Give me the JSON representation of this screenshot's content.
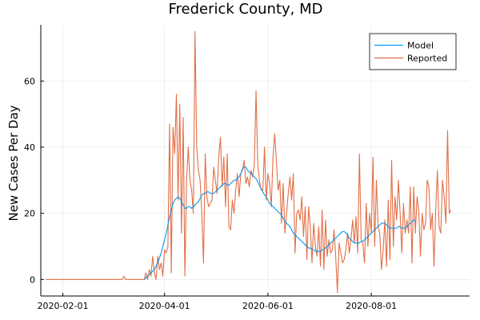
{
  "chart_data": {
    "type": "line",
    "title": "Frederick County, MD",
    "xlabel": "",
    "ylabel": "New Cases Per Day",
    "x_start_date": "2020-01-22",
    "xlim": [
      "2020-01-19",
      "2020-09-28"
    ],
    "ylim": [
      -5,
      77
    ],
    "xticks": [
      "2020-02-01",
      "2020-04-01",
      "2020-06-01",
      "2020-08-01"
    ],
    "yticks": [
      0,
      20,
      40,
      60
    ],
    "grid": true,
    "legend_position": "top-right",
    "series": [
      {
        "name": "Model",
        "color": "#009AFA",
        "start": "2020-03-20",
        "values": [
          0,
          0.5,
          1,
          1.5,
          2,
          2.5,
          3,
          4,
          5,
          6.5,
          8,
          10,
          12,
          14,
          16.5,
          19,
          21,
          23,
          24,
          24.5,
          25,
          24.5,
          23.5,
          22.5,
          21.5,
          21.5,
          22,
          22,
          21.5,
          22,
          22.5,
          23,
          23.5,
          24.5,
          25.5,
          26,
          26,
          26.5,
          26.5,
          26,
          26,
          26,
          26.5,
          27,
          27.5,
          28,
          28.5,
          29,
          29,
          28.5,
          28.5,
          29,
          29.5,
          30,
          30,
          30.5,
          31,
          32,
          33.5,
          34,
          34,
          33,
          32.5,
          32,
          31.5,
          31,
          30.5,
          29.5,
          28.5,
          27.5,
          26.5,
          25.5,
          25,
          24,
          23,
          22.5,
          22,
          21.5,
          21,
          20.5,
          20,
          19.5,
          18.5,
          17.5,
          17,
          16.5,
          16,
          15,
          14,
          13.5,
          13,
          12.5,
          12,
          11.5,
          11,
          10.5,
          10,
          9.5,
          9.5,
          9,
          9,
          8.5,
          8.5,
          8.5,
          8.5,
          9,
          9,
          9.5,
          10,
          10.5,
          11,
          11.5,
          12,
          12.5,
          13,
          13.5,
          14,
          14.5,
          14.5,
          14,
          13.5,
          12.5,
          12,
          11.5,
          11,
          11,
          11,
          11,
          11.5,
          11.5,
          12,
          12.5,
          13,
          13.5,
          14,
          14.5,
          15,
          15.5,
          16,
          16.5,
          17,
          17,
          17,
          16.5,
          16,
          15.5,
          15.5,
          15.5,
          15.5,
          15.5,
          16,
          16,
          15.5,
          15.5,
          15.5,
          16,
          16.5,
          17,
          17.5,
          18,
          17.5
        ]
      },
      {
        "name": "Reported",
        "color": "#E26F46",
        "start": "2020-01-22",
        "values": [
          0,
          0,
          0,
          0,
          0,
          0,
          0,
          0,
          0,
          0,
          0,
          0,
          0,
          0,
          0,
          0,
          0,
          0,
          0,
          0,
          0,
          0,
          0,
          0,
          0,
          0,
          0,
          0,
          0,
          0,
          0,
          0,
          0,
          0,
          0,
          0,
          0,
          0,
          0,
          0,
          0,
          0,
          0,
          0,
          0,
          0,
          1,
          0,
          0,
          0,
          0,
          0,
          0,
          0,
          0,
          0,
          0,
          0,
          0,
          2,
          0,
          3,
          1,
          7,
          2,
          0,
          7,
          3,
          5,
          1,
          9,
          8,
          10,
          47,
          2,
          46,
          38,
          56,
          24,
          53,
          14,
          49,
          1,
          30,
          40,
          30,
          27,
          20,
          75,
          40,
          33,
          30,
          20,
          5,
          38,
          25,
          22,
          23,
          24,
          34,
          30,
          26,
          37,
          43,
          28,
          37,
          22,
          38,
          16,
          15,
          24,
          20,
          27,
          32,
          25,
          32,
          33,
          36,
          29,
          31,
          28,
          33,
          31,
          35,
          57,
          35,
          30,
          27,
          27,
          40,
          24,
          32,
          29,
          22,
          37,
          44,
          36,
          27,
          30,
          17,
          29,
          14,
          20,
          26,
          31,
          24,
          32,
          8,
          20,
          21,
          18,
          25,
          13,
          22,
          6,
          22,
          16,
          5,
          17,
          10,
          7,
          16,
          4,
          21,
          3,
          18,
          7,
          12,
          8,
          9,
          15,
          7,
          -4,
          11,
          8,
          5,
          6,
          9,
          14,
          8,
          12,
          18,
          11,
          19,
          8,
          38,
          12,
          11,
          5,
          23,
          10,
          20,
          14,
          37,
          10,
          30,
          16,
          14,
          3,
          9,
          18,
          4,
          24,
          6,
          36,
          10,
          25,
          18,
          30,
          20,
          8,
          23,
          14,
          18,
          14,
          28,
          5,
          28,
          14,
          25,
          21,
          7,
          20,
          15,
          17,
          30,
          28,
          15,
          20,
          4,
          21,
          33,
          16,
          14,
          30,
          25,
          17,
          45,
          20,
          21
        ]
      }
    ]
  }
}
